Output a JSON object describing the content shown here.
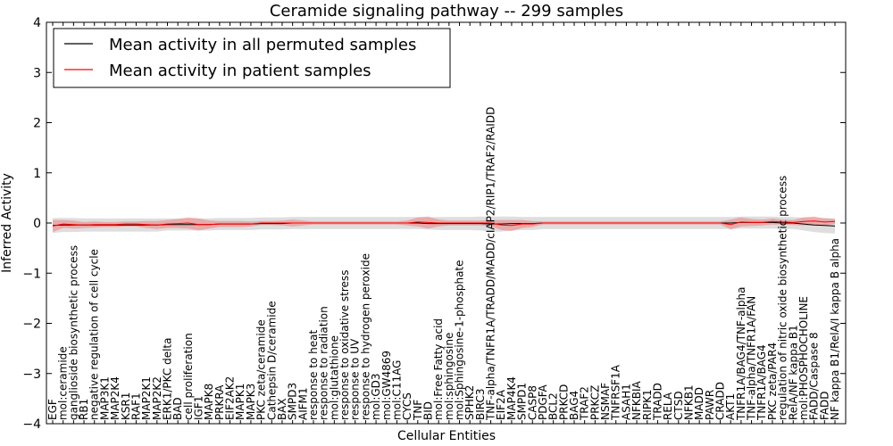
{
  "chart_data": {
    "type": "line",
    "title": "Ceramide signaling pathway -- 299 samples",
    "xlabel": "Cellular Entities",
    "ylabel": "Inferred Activity",
    "ylim": [
      -4,
      4
    ],
    "yticks": [
      -4,
      -3,
      -2,
      -1,
      0,
      1,
      2,
      3,
      4
    ],
    "ytick_labels": [
      "−4",
      "−3",
      "−2",
      "−1",
      "0",
      "1",
      "2",
      "3",
      "4"
    ],
    "grid": false,
    "legend_position": "top-left",
    "categories": [
      "EGF",
      "mol:ceramide",
      "ganglioside biosynthetic process",
      "RB1",
      "negative regulation of cell cycle",
      "MAP3K1",
      "MAP2K4",
      "KSR1",
      "RAF1",
      "MAP2K1",
      "MAP2K2",
      "ERK1/PKC delta",
      "BAD",
      "cell proliferation",
      "IGF1",
      "MAPK8",
      "PRKRA",
      "EIF2AK2",
      "MAPK1",
      "MAPK3",
      "PKC zeta/ceramide",
      "Cathepsin D/ceramide",
      "BAX",
      "SMPD3",
      "AIFM1",
      "response to heat",
      "response to radiation",
      "mol:glutathione",
      "response to oxidative stress",
      "response to UV",
      "response to hydrogen peroxide",
      "mol:GD3",
      "mol:GW4869",
      "mol:C11AG",
      "CYCS",
      "TNF",
      "BID",
      "mol:Free Fatty acid",
      "mol:sphingosine",
      "mol:Sphingosine-1-phosphate",
      "SPHK2",
      "BIRC3",
      "TNF-alpha/TNFR1A/TRADD/MADD/cIAP2/RIP1/TRAF2/RAIDD",
      "EIF2A",
      "MAP4K4",
      "SMPD1",
      "CASP8",
      "PDGFA",
      "BCL2",
      "PRKCD",
      "BAG4",
      "TRAF2",
      "PRKCZ",
      "NSMAF",
      "TNFRSF1A",
      "ASAH1",
      "NFKBIA",
      "RIPK1",
      "TRADD",
      "RELA",
      "CTSD",
      "NFKB1",
      "MADD",
      "PAWR",
      "CRADD",
      "AKT1",
      "TNFR1A/BAG4/TNF-alpha",
      "TNF-alpha/TNFR1A/FAN",
      "TNFR1A/BAG4",
      "PKC zeta/PAR4",
      "regulation of nitric oxide biosynthetic process",
      "RelA/NF kappa B1",
      "mol:PHOSPHOCHOLINE",
      "FADD/Caspase 8",
      "FADD",
      "NF kappa B1/RelA/I kappa B alpha"
    ],
    "series": [
      {
        "name": "Mean activity in all permuted samples",
        "color": "#000000",
        "band_color": "#c8c8c8",
        "values": [
          -0.05,
          -0.04,
          -0.04,
          -0.04,
          -0.04,
          -0.04,
          -0.04,
          -0.04,
          -0.04,
          -0.04,
          -0.04,
          -0.03,
          -0.03,
          -0.03,
          -0.03,
          -0.03,
          -0.02,
          -0.02,
          -0.02,
          -0.02,
          -0.01,
          -0.01,
          -0.01,
          0.0,
          0.0,
          0.0,
          0.0,
          0.0,
          0.0,
          0.0,
          0.0,
          0.0,
          0.0,
          0.0,
          0.0,
          0.0,
          -0.01,
          -0.01,
          -0.01,
          -0.01,
          -0.01,
          -0.01,
          -0.02,
          -0.02,
          -0.01,
          -0.01,
          -0.01,
          0.0,
          0.0,
          0.0,
          0.0,
          0.0,
          0.0,
          0.0,
          0.0,
          0.0,
          0.0,
          0.0,
          0.0,
          0.0,
          0.0,
          0.0,
          0.0,
          0.0,
          0.0,
          0.0,
          0.01,
          0.01,
          0.01,
          0.01,
          0.0,
          0.0,
          -0.02,
          -0.04,
          -0.05,
          -0.06
        ],
        "band": [
          0.15,
          0.14,
          0.14,
          0.13,
          0.13,
          0.13,
          0.13,
          0.13,
          0.13,
          0.13,
          0.13,
          0.12,
          0.12,
          0.12,
          0.12,
          0.12,
          0.12,
          0.12,
          0.12,
          0.12,
          0.12,
          0.12,
          0.12,
          0.12,
          0.12,
          0.12,
          0.12,
          0.12,
          0.12,
          0.12,
          0.12,
          0.12,
          0.12,
          0.12,
          0.12,
          0.12,
          0.12,
          0.13,
          0.13,
          0.13,
          0.13,
          0.14,
          0.15,
          0.15,
          0.14,
          0.13,
          0.13,
          0.12,
          0.12,
          0.12,
          0.12,
          0.12,
          0.12,
          0.12,
          0.12,
          0.12,
          0.12,
          0.12,
          0.12,
          0.12,
          0.12,
          0.12,
          0.12,
          0.12,
          0.12,
          0.12,
          0.12,
          0.12,
          0.12,
          0.12,
          0.12,
          0.12,
          0.13,
          0.14,
          0.15,
          0.15
        ]
      },
      {
        "name": "Mean activity in patient samples",
        "color": "#ff0000",
        "band_color": "#f08080",
        "values": [
          -0.06,
          -0.02,
          -0.03,
          -0.04,
          -0.03,
          -0.03,
          -0.03,
          -0.02,
          -0.02,
          -0.03,
          -0.04,
          -0.02,
          -0.01,
          0.0,
          -0.03,
          -0.03,
          -0.02,
          -0.02,
          -0.02,
          -0.02,
          0.0,
          0.0,
          0.0,
          0.0,
          0.0,
          0.0,
          0.0,
          0.0,
          0.0,
          0.0,
          0.0,
          0.0,
          0.0,
          0.0,
          0.0,
          0.02,
          0.01,
          0.0,
          0.0,
          0.0,
          0.0,
          0.0,
          0.0,
          -0.04,
          -0.05,
          -0.02,
          -0.02,
          0.0,
          0.0,
          0.0,
          0.0,
          0.0,
          0.0,
          0.0,
          0.0,
          0.0,
          0.0,
          0.0,
          0.0,
          0.0,
          0.0,
          0.0,
          0.0,
          0.0,
          0.0,
          -0.03,
          0.02,
          0.01,
          0.01,
          0.03,
          0.02,
          0.01,
          0.03,
          0.04,
          0.02,
          0.03
        ],
        "band": [
          0.12,
          0.08,
          0.08,
          0.06,
          0.06,
          0.05,
          0.05,
          0.05,
          0.05,
          0.07,
          0.08,
          0.08,
          0.09,
          0.11,
          0.12,
          0.08,
          0.06,
          0.06,
          0.06,
          0.05,
          0.04,
          0.04,
          0.05,
          0.07,
          0.05,
          0.03,
          0.03,
          0.03,
          0.03,
          0.03,
          0.03,
          0.03,
          0.03,
          0.03,
          0.05,
          0.09,
          0.12,
          0.07,
          0.05,
          0.05,
          0.05,
          0.05,
          0.06,
          0.1,
          0.11,
          0.08,
          0.06,
          0.03,
          0.03,
          0.03,
          0.03,
          0.03,
          0.03,
          0.03,
          0.03,
          0.03,
          0.03,
          0.03,
          0.03,
          0.03,
          0.03,
          0.03,
          0.03,
          0.03,
          0.03,
          0.1,
          0.09,
          0.07,
          0.06,
          0.06,
          0.05,
          0.05,
          0.08,
          0.09,
          0.07,
          0.05
        ]
      }
    ]
  }
}
